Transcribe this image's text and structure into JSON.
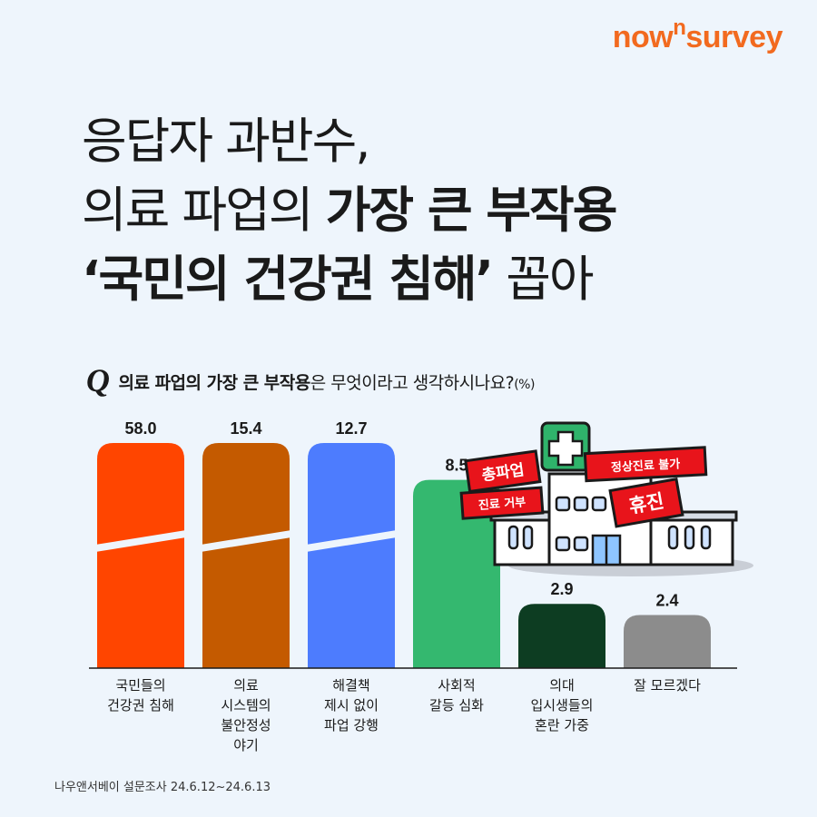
{
  "brand": {
    "logo_pre": "now",
    "logo_sup": "n",
    "logo_post": "survey",
    "color": "#f26a1f"
  },
  "headline": {
    "line1": "응답자 과반수,",
    "line2_normal": "의료 파업의 ",
    "line2_bold": "가장 큰 부작용",
    "line3_bold": "‘국민의 건강권 침해’",
    "line3_normal": " 꼽아"
  },
  "question": {
    "marker": "Q",
    "bold": "의료 파업의 가장 큰 부작용",
    "normal": "은 무엇이라고 생각하시나요?",
    "unit": "(%)"
  },
  "illustration": {
    "signs": [
      "총파업",
      "정상진료 불가",
      "진료 거부",
      "휴진"
    ]
  },
  "chart_data": {
    "type": "bar",
    "unit": "%",
    "categories": [
      [
        "국민들의",
        "건강권 침해"
      ],
      [
        "의료",
        "시스템의",
        "불안정성",
        "야기"
      ],
      [
        "해결책",
        "제시 없이",
        "파업 강행"
      ],
      [
        "사회적",
        "갈등 심화"
      ],
      [
        "의대",
        "입시생들의",
        "혼란 가중"
      ],
      [
        "잘 모르겠다"
      ]
    ],
    "values": [
      58.0,
      15.4,
      12.7,
      8.5,
      2.9,
      2.4
    ],
    "labels": [
      "58.0",
      "15.4",
      "12.7",
      "8.5",
      "2.9",
      "2.4"
    ],
    "colors": [
      "#ff4500",
      "#c45a00",
      "#4d7cfe",
      "#34b86f",
      "#0d3d22",
      "#8c8c8c"
    ],
    "axis_break": true
  },
  "source": "나우앤서베이 설문조사 24.6.12~24.6.13"
}
